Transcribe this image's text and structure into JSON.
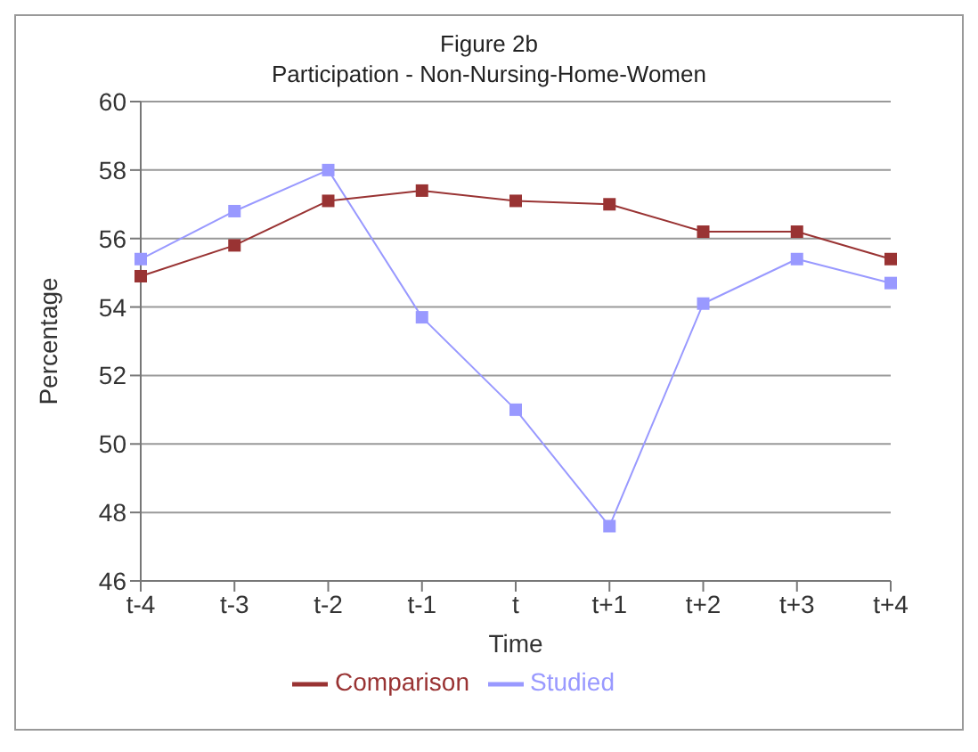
{
  "chart_data": {
    "type": "line",
    "title": "Figure 2b",
    "subtitle": "Participation - Non-Nursing-Home-Women",
    "xlabel": "Time",
    "ylabel": "Percentage",
    "categories": [
      "t-4",
      "t-3",
      "t-2",
      "t-1",
      "t",
      "t+1",
      "t+2",
      "t+3",
      "t+4"
    ],
    "series": [
      {
        "name": "Studied",
        "color": "#9999ff",
        "values": [
          55.4,
          56.8,
          58.0,
          53.7,
          51.0,
          47.6,
          54.1,
          55.4,
          54.7
        ]
      },
      {
        "name": "Comparison",
        "color": "#993333",
        "values": [
          54.9,
          55.8,
          57.1,
          57.4,
          57.1,
          57.0,
          56.2,
          56.2,
          55.4
        ]
      }
    ],
    "ylim": [
      46,
      60
    ],
    "yticks": [
      46,
      48,
      50,
      52,
      54,
      56,
      58,
      60
    ],
    "grid": "y",
    "legend": "bottom",
    "marker": "square",
    "line_style": "solid"
  }
}
